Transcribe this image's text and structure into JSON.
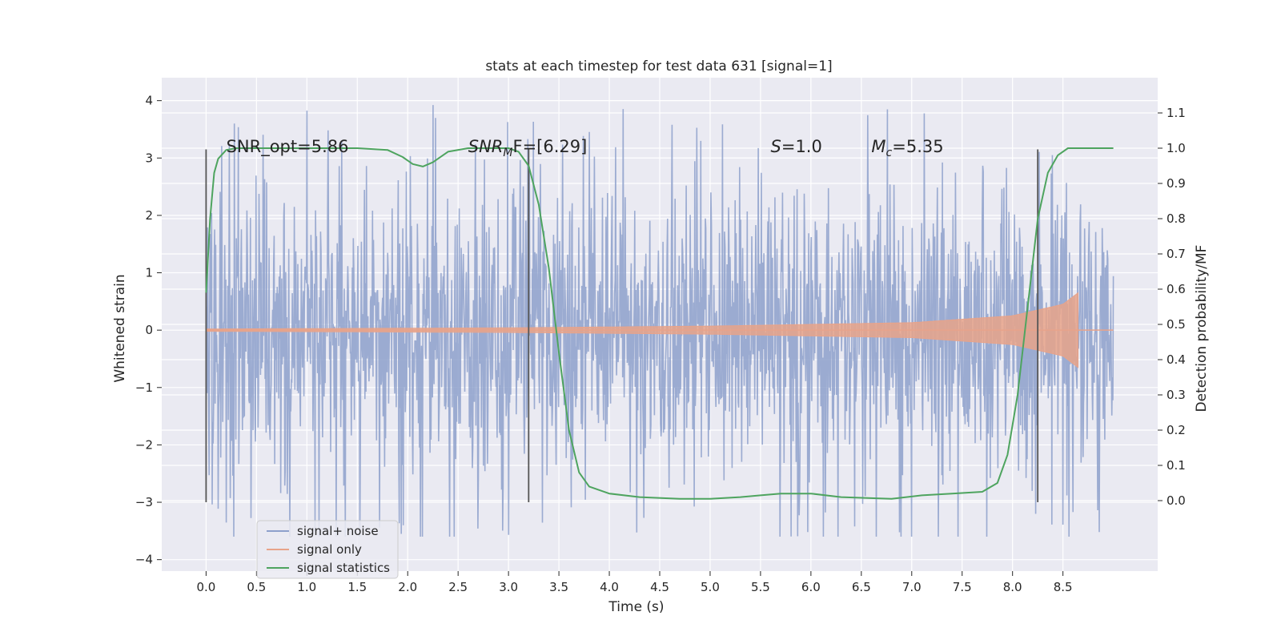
{
  "chart_data": {
    "type": "line",
    "title": "stats at each timestep for test data 631 [signal=1]",
    "xlabel": "Time (s)",
    "ylabel": "Whitened strain",
    "ylabel_right": "Detection probability/MF",
    "xlim": [
      -0.44,
      9.44
    ],
    "ylim": [
      -4.2,
      4.4
    ],
    "ylim_right": [
      -0.2,
      1.2
    ],
    "xticks": [
      "0.0",
      "0.5",
      "1.0",
      "1.5",
      "2.0",
      "2.5",
      "3.0",
      "3.5",
      "4.0",
      "4.5",
      "5.0",
      "5.5",
      "6.0",
      "6.5",
      "7.0",
      "7.5",
      "8.0",
      "8.5"
    ],
    "yticks": [
      "4",
      "3",
      "2",
      "1",
      "0",
      "−1",
      "−2",
      "−3",
      "−4"
    ],
    "yticks_right": [
      "1.1",
      "1.0",
      "0.9",
      "0.8",
      "0.7",
      "0.6",
      "0.5",
      "0.4",
      "0.3",
      "0.2",
      "0.1",
      "0.0"
    ],
    "grid": true,
    "legend_position": "lower-left",
    "annotations": [
      {
        "key": "snr_opt",
        "text": "SNR_opt=5.86",
        "x": 0.2,
        "y": 3.2
      },
      {
        "key": "snr_mf",
        "text": "F=[6.29]",
        "x": 2.6,
        "y": 3.2
      },
      {
        "key": "s",
        "text": "=1.0",
        "x": 5.6,
        "y": 3.2
      },
      {
        "key": "mc",
        "text": "=5.35",
        "x": 6.6,
        "y": 3.2
      }
    ],
    "annotation_glyphs": {
      "snr_mf_base": "SNR",
      "snr_mf_sub": "M",
      "s_base": "S",
      "mc_base": "M",
      "mc_sub": "c"
    },
    "vertical_lines": [
      0.0,
      3.2,
      8.25
    ],
    "vertical_line_range": [
      -3.0,
      3.15
    ],
    "series": [
      {
        "name": "signal+ noise",
        "color": "#8da0cb",
        "x_range": [
          0.0,
          9.0
        ],
        "envelope": {
          "core": 1.3,
          "typical_peak": 2.5,
          "max": 4.0,
          "min": -3.6
        }
      },
      {
        "name": "signal only",
        "color": "#e8a38a",
        "x_range": [
          0.0,
          8.65
        ],
        "envelope_points": [
          {
            "x": 0.0,
            "amp": 0.02
          },
          {
            "x": 3.0,
            "amp": 0.04
          },
          {
            "x": 5.0,
            "amp": 0.07
          },
          {
            "x": 7.0,
            "amp": 0.13
          },
          {
            "x": 8.0,
            "amp": 0.25
          },
          {
            "x": 8.5,
            "amp": 0.45
          },
          {
            "x": 8.65,
            "amp": 0.65
          }
        ]
      },
      {
        "name": "signal statistics",
        "color": "#4ea45f",
        "axis": "right",
        "x": [
          0.0,
          0.04,
          0.08,
          0.12,
          0.2,
          0.3,
          0.5,
          1.0,
          1.5,
          1.8,
          1.95,
          2.05,
          2.15,
          2.25,
          2.4,
          2.6,
          3.0,
          3.1,
          3.2,
          3.3,
          3.4,
          3.5,
          3.6,
          3.7,
          3.8,
          4.0,
          4.3,
          4.7,
          5.0,
          5.3,
          5.5,
          5.7,
          6.0,
          6.3,
          6.8,
          7.1,
          7.4,
          7.7,
          7.85,
          7.95,
          8.05,
          8.15,
          8.25,
          8.35,
          8.45,
          8.55,
          8.7,
          9.0
        ],
        "y": [
          0.59,
          0.8,
          0.93,
          0.97,
          0.995,
          1.0,
          1.0,
          1.0,
          1.0,
          0.995,
          0.975,
          0.955,
          0.948,
          0.96,
          0.99,
          1.0,
          1.0,
          0.99,
          0.95,
          0.84,
          0.66,
          0.42,
          0.2,
          0.08,
          0.04,
          0.02,
          0.01,
          0.005,
          0.005,
          0.01,
          0.015,
          0.02,
          0.02,
          0.01,
          0.005,
          0.015,
          0.02,
          0.025,
          0.05,
          0.13,
          0.3,
          0.55,
          0.8,
          0.93,
          0.98,
          1.0,
          1.0,
          1.0
        ]
      }
    ]
  }
}
